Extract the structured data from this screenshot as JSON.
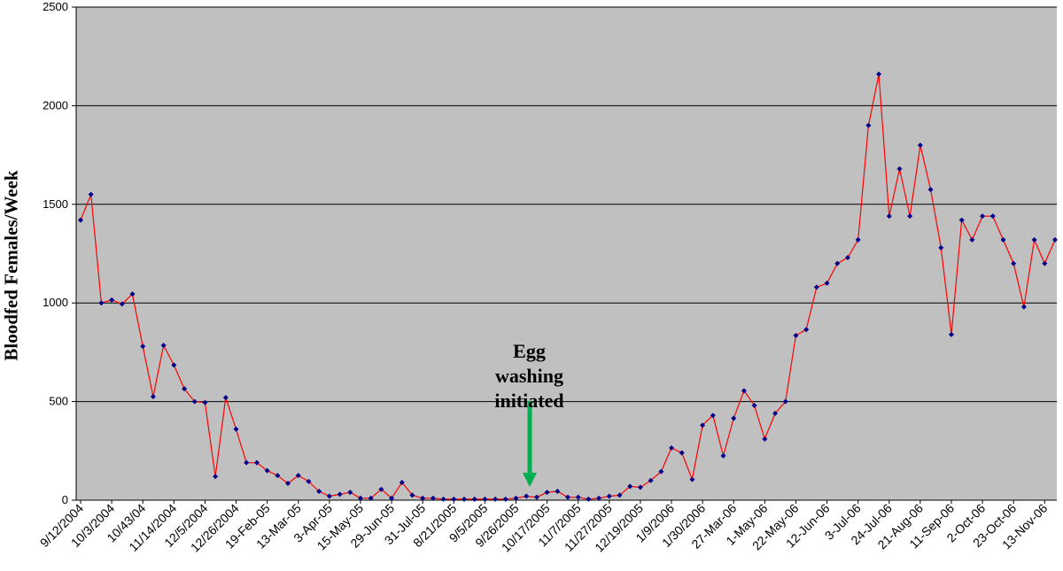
{
  "chart_data": {
    "type": "line",
    "ylabel": "Bloodfed Females/Week",
    "xlabel": "",
    "ylim": [
      0,
      2500
    ],
    "yticks": [
      "0",
      "500",
      "1000",
      "1500",
      "2000",
      "2500"
    ],
    "grid": "horizontal",
    "colors": {
      "plot_bg": "#c0c0c0",
      "line": "#ff0000",
      "marker": "#00008b",
      "arrow": "#00b050",
      "grid": "#000000"
    },
    "xtick_labels": [
      "9/12/2004",
      "10/3/2004",
      "10/43/04",
      "11/14/2004",
      "12/5/2004",
      "12/26/2004",
      "19-Feb-05",
      "13-Mar-05",
      "3-Apr-05",
      "15-May-05",
      "29-Jun-05",
      "31-Jul-05",
      "8/21/2005",
      "9/5/2005",
      "9/26/2005",
      "10/17/2005",
      "11/7/2005",
      "11/27/2005",
      "12/19/2005",
      "1/9/2006",
      "1/30/2006",
      "27-Mar-06",
      "1-May-06",
      "22-May-06",
      "12-Jun-06",
      "3-Jul-06",
      "24-Jul-06",
      "21-Aug-06",
      "11-Sep-06",
      "2-Oct-06",
      "23-Oct-06",
      "13-Nov-06"
    ],
    "series": [
      {
        "values": [
          1420,
          1550,
          1000,
          1015,
          995,
          1045,
          780,
          525,
          785,
          685,
          565,
          500,
          495,
          120,
          520,
          360,
          190,
          190,
          150,
          125,
          85,
          125,
          95,
          45,
          20,
          30,
          40,
          10,
          10,
          55,
          10,
          90,
          25,
          10,
          10,
          5,
          5,
          5,
          5,
          5,
          5,
          5,
          10,
          20,
          15,
          40,
          45,
          15,
          15,
          5,
          10,
          20,
          25,
          70,
          65,
          100,
          145,
          265,
          240,
          105,
          380,
          430,
          225,
          415,
          555,
          480,
          310,
          440,
          500,
          835,
          865,
          1080,
          1100,
          1200,
          1230,
          1320,
          1900,
          2160,
          1440,
          1680,
          1440,
          1800,
          1575,
          1280,
          840,
          1420,
          1320,
          1440,
          1440,
          1320,
          1200,
          980,
          1320,
          1200,
          1320
        ]
      }
    ],
    "annotations": [
      {
        "line1": "Egg washing",
        "line2": "initiated"
      }
    ]
  }
}
